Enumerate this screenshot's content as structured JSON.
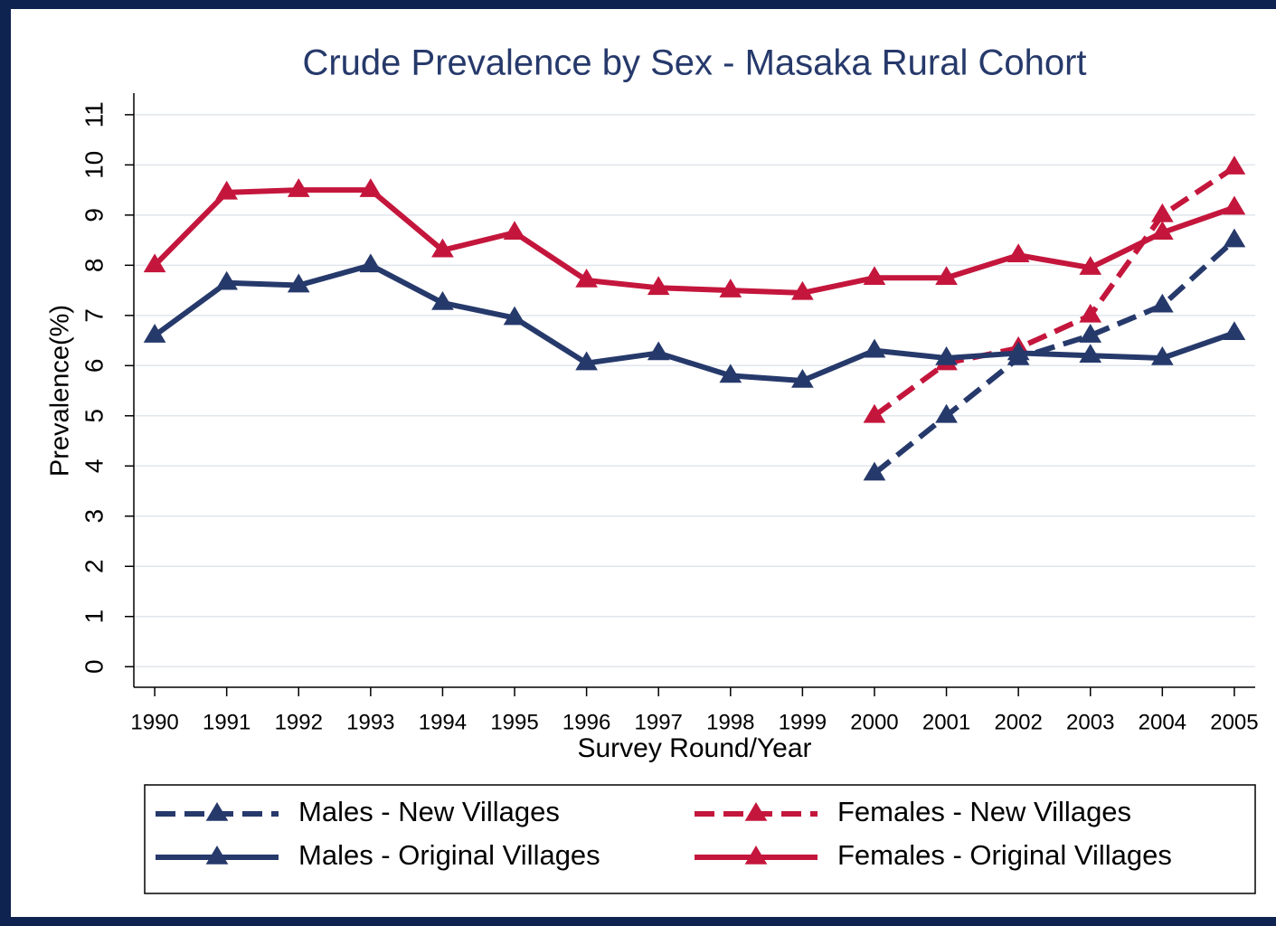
{
  "chart_data": {
    "type": "line",
    "title": "Crude Prevalence by Sex - Masaka Rural Cohort",
    "x_label": "Survey Round/Year",
    "y_label": "Prevalence(%)",
    "x": [
      1990,
      1991,
      1992,
      1993,
      1994,
      1995,
      1996,
      1997,
      1998,
      1999,
      2000,
      2001,
      2002,
      2003,
      2004,
      2005
    ],
    "series": [
      {
        "name": "Males - New Villages",
        "color": "#26396b",
        "line_style": "dashed",
        "values": [
          null,
          null,
          null,
          null,
          null,
          null,
          null,
          null,
          null,
          null,
          3.85,
          5.0,
          6.15,
          6.6,
          7.2,
          8.5
        ]
      },
      {
        "name": "Females - New Villages",
        "color": "#c4163c",
        "line_style": "dashed",
        "values": [
          null,
          null,
          null,
          null,
          null,
          null,
          null,
          null,
          null,
          null,
          5.0,
          6.05,
          6.35,
          7.0,
          9.0,
          9.95
        ]
      },
      {
        "name": "Males - Original Villages",
        "color": "#26396b",
        "line_style": "solid",
        "values": [
          6.6,
          7.65,
          7.6,
          8.0,
          7.25,
          6.95,
          6.05,
          6.25,
          5.8,
          5.7,
          6.3,
          6.15,
          6.25,
          6.2,
          6.15,
          6.65
        ]
      },
      {
        "name": "Females - Original Villages",
        "color": "#c4163c",
        "line_style": "solid",
        "values": [
          8.0,
          9.45,
          9.5,
          9.5,
          8.3,
          8.65,
          7.7,
          7.55,
          7.5,
          7.45,
          7.75,
          7.75,
          8.2,
          7.95,
          8.65,
          9.15
        ]
      }
    ],
    "xlim": [
      1989.71,
      2005.29
    ],
    "xticks": [
      1990,
      1991,
      1992,
      1993,
      1994,
      1995,
      1996,
      1997,
      1998,
      1999,
      2000,
      2001,
      2002,
      2003,
      2004,
      2005
    ],
    "ylim": [
      -0.41,
      11.43
    ],
    "yticks": [
      0,
      1,
      2,
      3,
      4,
      5,
      6,
      7,
      8,
      9,
      10,
      11
    ],
    "grid": true,
    "marker": "triangle",
    "legend_position": "bottom"
  }
}
